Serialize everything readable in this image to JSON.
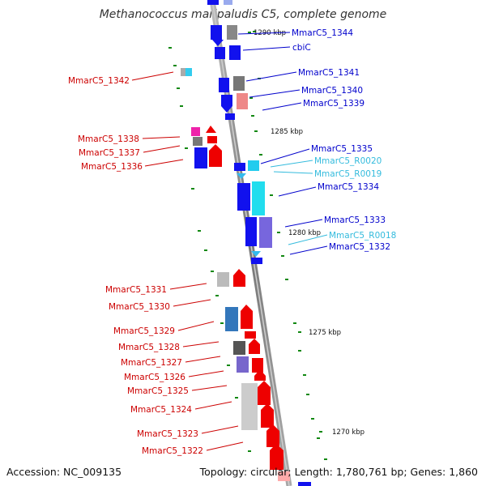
{
  "title": "Methanococcus maripaludis C5, complete genome",
  "accession": "Accession: NC_009135",
  "summary": "Topology: circular; Length: 1,780,761 bp; Genes: 1,860",
  "colors": {
    "forward_label": "#0000cc",
    "reverse_label": "#cc0000",
    "rna_label": "#33bbdd",
    "backbone": "#888888",
    "tick": "#118811"
  },
  "position_ticks": [
    "1290 kbp",
    "1285 kbp",
    "1280 kbp",
    "1275 kbp",
    "1270 kbp"
  ],
  "labels_right": [
    {
      "text": "MmarC5_1344",
      "type": "forward"
    },
    {
      "text": "cbiC",
      "type": "forward"
    },
    {
      "text": "MmarC5_1341",
      "type": "forward"
    },
    {
      "text": "MmarC5_1340",
      "type": "forward"
    },
    {
      "text": "MmarC5_1339",
      "type": "forward"
    },
    {
      "text": "MmarC5_1335",
      "type": "forward"
    },
    {
      "text": "MmarC5_R0020",
      "type": "rna"
    },
    {
      "text": "MmarC5_R0019",
      "type": "rna"
    },
    {
      "text": "MmarC5_1334",
      "type": "forward"
    },
    {
      "text": "MmarC5_1333",
      "type": "forward"
    },
    {
      "text": "MmarC5_R0018",
      "type": "rna"
    },
    {
      "text": "MmarC5_1332",
      "type": "forward"
    }
  ],
  "labels_left": [
    {
      "text": "MmarC5_1342",
      "type": "reverse"
    },
    {
      "text": "MmarC5_1338",
      "type": "reverse"
    },
    {
      "text": "MmarC5_1337",
      "type": "reverse"
    },
    {
      "text": "MmarC5_1336",
      "type": "reverse"
    },
    {
      "text": "MmarC5_1331",
      "type": "reverse"
    },
    {
      "text": "MmarC5_1330",
      "type": "reverse"
    },
    {
      "text": "MmarC5_1329",
      "type": "reverse"
    },
    {
      "text": "MmarC5_1328",
      "type": "reverse"
    },
    {
      "text": "MmarC5_1327",
      "type": "reverse"
    },
    {
      "text": "MmarC5_1326",
      "type": "reverse"
    },
    {
      "text": "MmarC5_1325",
      "type": "reverse"
    },
    {
      "text": "MmarC5_1324",
      "type": "reverse"
    },
    {
      "text": "MmarC5_1323",
      "type": "reverse"
    },
    {
      "text": "MmarC5_1322",
      "type": "reverse"
    }
  ]
}
